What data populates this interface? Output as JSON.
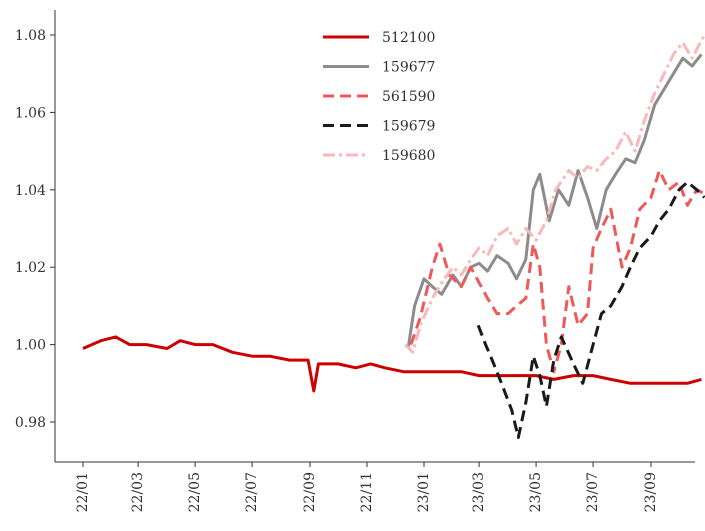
{
  "chart_data": {
    "type": "line",
    "title": "",
    "xlabel": "",
    "ylabel": "",
    "x_range": [
      "2022-01-01",
      "2023-11-05"
    ],
    "ylim": [
      0.969,
      1.082
    ],
    "yticks": [
      0.98,
      1.0,
      1.02,
      1.04,
      1.06,
      1.08
    ],
    "ytick_labels": [
      "0.98",
      "1.00",
      "1.02",
      "1.04",
      "1.06",
      "1.08"
    ],
    "xticks": [
      "2022-01-01",
      "2022-03-01",
      "2022-05-01",
      "2022-07-01",
      "2022-09-01",
      "2022-11-01",
      "2023-01-01",
      "2023-03-01",
      "2023-05-01",
      "2023-07-01",
      "2023-09-01"
    ],
    "xtick_labels": [
      "22/01",
      "22/03",
      "22/05",
      "22/07",
      "22/09",
      "22/11",
      "23/01",
      "23/03",
      "23/05",
      "23/07",
      "23/09"
    ],
    "grid": false,
    "legend_position": "top-center",
    "series": [
      {
        "name": "512100",
        "color": "#cc0000",
        "dash": "solid",
        "points": [
          [
            "2022-01-01",
            0.999
          ],
          [
            "2022-01-20",
            1.001
          ],
          [
            "2022-02-05",
            1.002
          ],
          [
            "2022-02-20",
            1.0
          ],
          [
            "2022-03-10",
            1.0
          ],
          [
            "2022-04-01",
            0.999
          ],
          [
            "2022-04-15",
            1.001
          ],
          [
            "2022-05-01",
            1.0
          ],
          [
            "2022-05-20",
            1.0
          ],
          [
            "2022-06-10",
            0.998
          ],
          [
            "2022-07-01",
            0.997
          ],
          [
            "2022-07-20",
            0.997
          ],
          [
            "2022-08-10",
            0.996
          ],
          [
            "2022-08-30",
            0.996
          ],
          [
            "2022-09-05",
            0.988
          ],
          [
            "2022-09-10",
            0.995
          ],
          [
            "2022-10-01",
            0.995
          ],
          [
            "2022-10-20",
            0.994
          ],
          [
            "2022-11-05",
            0.995
          ],
          [
            "2022-11-20",
            0.994
          ],
          [
            "2022-12-10",
            0.993
          ],
          [
            "2023-01-01",
            0.993
          ],
          [
            "2023-01-20",
            0.993
          ],
          [
            "2023-02-10",
            0.993
          ],
          [
            "2023-03-01",
            0.992
          ],
          [
            "2023-03-20",
            0.992
          ],
          [
            "2023-04-10",
            0.992
          ],
          [
            "2023-05-01",
            0.992
          ],
          [
            "2023-05-20",
            0.991
          ],
          [
            "2023-06-10",
            0.992
          ],
          [
            "2023-07-01",
            0.992
          ],
          [
            "2023-07-20",
            0.991
          ],
          [
            "2023-08-10",
            0.99
          ],
          [
            "2023-09-01",
            0.99
          ],
          [
            "2023-09-20",
            0.99
          ],
          [
            "2023-10-10",
            0.99
          ],
          [
            "2023-10-25",
            0.991
          ]
        ]
      },
      {
        "name": "159677",
        "color": "#8c8c8c",
        "dash": "solid",
        "points": [
          [
            "2022-12-15",
            0.999
          ],
          [
            "2022-12-22",
            1.01
          ],
          [
            "2023-01-01",
            1.017
          ],
          [
            "2023-01-10",
            1.015
          ],
          [
            "2023-01-20",
            1.013
          ],
          [
            "2023-02-01",
            1.018
          ],
          [
            "2023-02-10",
            1.015
          ],
          [
            "2023-02-20",
            1.02
          ],
          [
            "2023-03-01",
            1.021
          ],
          [
            "2023-03-10",
            1.019
          ],
          [
            "2023-03-20",
            1.023
          ],
          [
            "2023-04-01",
            1.021
          ],
          [
            "2023-04-10",
            1.017
          ],
          [
            "2023-04-20",
            1.022
          ],
          [
            "2023-04-28",
            1.04
          ],
          [
            "2023-05-05",
            1.044
          ],
          [
            "2023-05-15",
            1.032
          ],
          [
            "2023-05-25",
            1.04
          ],
          [
            "2023-06-05",
            1.036
          ],
          [
            "2023-06-15",
            1.045
          ],
          [
            "2023-06-25",
            1.038
          ],
          [
            "2023-07-05",
            1.03
          ],
          [
            "2023-07-15",
            1.04
          ],
          [
            "2023-07-25",
            1.044
          ],
          [
            "2023-08-05",
            1.048
          ],
          [
            "2023-08-15",
            1.047
          ],
          [
            "2023-08-25",
            1.053
          ],
          [
            "2023-09-05",
            1.062
          ],
          [
            "2023-09-15",
            1.066
          ],
          [
            "2023-09-25",
            1.07
          ],
          [
            "2023-10-05",
            1.074
          ],
          [
            "2023-10-15",
            1.072
          ],
          [
            "2023-10-25",
            1.075
          ]
        ]
      },
      {
        "name": "561590",
        "color": "#f0595a",
        "dash": "dashed",
        "points": [
          [
            "2022-12-18",
            1.0
          ],
          [
            "2022-12-28",
            1.007
          ],
          [
            "2023-01-10",
            1.02
          ],
          [
            "2023-01-18",
            1.026
          ],
          [
            "2023-01-28",
            1.018
          ],
          [
            "2023-02-10",
            1.015
          ],
          [
            "2023-02-20",
            1.02
          ],
          [
            "2023-03-01",
            1.016
          ],
          [
            "2023-03-10",
            1.012
          ],
          [
            "2023-03-20",
            1.008
          ],
          [
            "2023-04-01",
            1.008
          ],
          [
            "2023-04-10",
            1.01
          ],
          [
            "2023-04-20",
            1.012
          ],
          [
            "2023-04-28",
            1.026
          ],
          [
            "2023-05-05",
            1.02
          ],
          [
            "2023-05-12",
            1.0
          ],
          [
            "2023-05-20",
            0.993
          ],
          [
            "2023-05-28",
            1.0
          ],
          [
            "2023-06-05",
            1.015
          ],
          [
            "2023-06-15",
            1.005
          ],
          [
            "2023-06-25",
            1.008
          ],
          [
            "2023-07-01",
            1.025
          ],
          [
            "2023-07-10",
            1.03
          ],
          [
            "2023-07-20",
            1.035
          ],
          [
            "2023-08-01",
            1.02
          ],
          [
            "2023-08-10",
            1.025
          ],
          [
            "2023-08-20",
            1.035
          ],
          [
            "2023-09-01",
            1.038
          ],
          [
            "2023-09-10",
            1.045
          ],
          [
            "2023-09-20",
            1.04
          ],
          [
            "2023-10-01",
            1.042
          ],
          [
            "2023-10-10",
            1.036
          ],
          [
            "2023-10-20",
            1.04
          ],
          [
            "2023-10-28",
            1.039
          ]
        ]
      },
      {
        "name": "159679",
        "color": "#1a1a1a",
        "dash": "dashed",
        "points": [
          [
            "2023-02-28",
            1.005
          ],
          [
            "2023-03-08",
            1.0
          ],
          [
            "2023-03-15",
            0.996
          ],
          [
            "2023-03-25",
            0.99
          ],
          [
            "2023-04-05",
            0.983
          ],
          [
            "2023-04-12",
            0.976
          ],
          [
            "2023-04-20",
            0.985
          ],
          [
            "2023-04-28",
            0.997
          ],
          [
            "2023-05-05",
            0.992
          ],
          [
            "2023-05-12",
            0.984
          ],
          [
            "2023-05-20",
            0.996
          ],
          [
            "2023-05-28",
            1.002
          ],
          [
            "2023-06-10",
            0.995
          ],
          [
            "2023-06-20",
            0.99
          ],
          [
            "2023-07-01",
            1.0
          ],
          [
            "2023-07-10",
            1.008
          ],
          [
            "2023-07-20",
            1.01
          ],
          [
            "2023-08-01",
            1.015
          ],
          [
            "2023-08-10",
            1.02
          ],
          [
            "2023-08-20",
            1.025
          ],
          [
            "2023-09-01",
            1.028
          ],
          [
            "2023-09-10",
            1.032
          ],
          [
            "2023-09-20",
            1.035
          ],
          [
            "2023-10-01",
            1.04
          ],
          [
            "2023-10-10",
            1.042
          ],
          [
            "2023-10-20",
            1.04
          ],
          [
            "2023-10-28",
            1.038
          ]
        ]
      },
      {
        "name": "159680",
        "color": "#f7b9b9",
        "dash": "dashdot",
        "points": [
          [
            "2022-12-12",
            1.0
          ],
          [
            "2022-12-20",
            0.998
          ],
          [
            "2022-12-28",
            1.005
          ],
          [
            "2023-01-10",
            1.012
          ],
          [
            "2023-01-20",
            1.016
          ],
          [
            "2023-02-01",
            1.02
          ],
          [
            "2023-02-10",
            1.018
          ],
          [
            "2023-02-20",
            1.022
          ],
          [
            "2023-03-01",
            1.025
          ],
          [
            "2023-03-10",
            1.023
          ],
          [
            "2023-03-20",
            1.028
          ],
          [
            "2023-04-01",
            1.03
          ],
          [
            "2023-04-10",
            1.026
          ],
          [
            "2023-04-20",
            1.03
          ],
          [
            "2023-05-01",
            1.027
          ],
          [
            "2023-05-12",
            1.032
          ],
          [
            "2023-05-22",
            1.04
          ],
          [
            "2023-06-05",
            1.045
          ],
          [
            "2023-06-15",
            1.043
          ],
          [
            "2023-06-25",
            1.046
          ],
          [
            "2023-07-05",
            1.045
          ],
          [
            "2023-07-15",
            1.048
          ],
          [
            "2023-07-25",
            1.05
          ],
          [
            "2023-08-05",
            1.055
          ],
          [
            "2023-08-15",
            1.05
          ],
          [
            "2023-08-25",
            1.058
          ],
          [
            "2023-09-05",
            1.065
          ],
          [
            "2023-09-15",
            1.07
          ],
          [
            "2023-09-25",
            1.075
          ],
          [
            "2023-10-05",
            1.078
          ],
          [
            "2023-10-15",
            1.074
          ],
          [
            "2023-10-28",
            1.08
          ]
        ]
      }
    ]
  }
}
